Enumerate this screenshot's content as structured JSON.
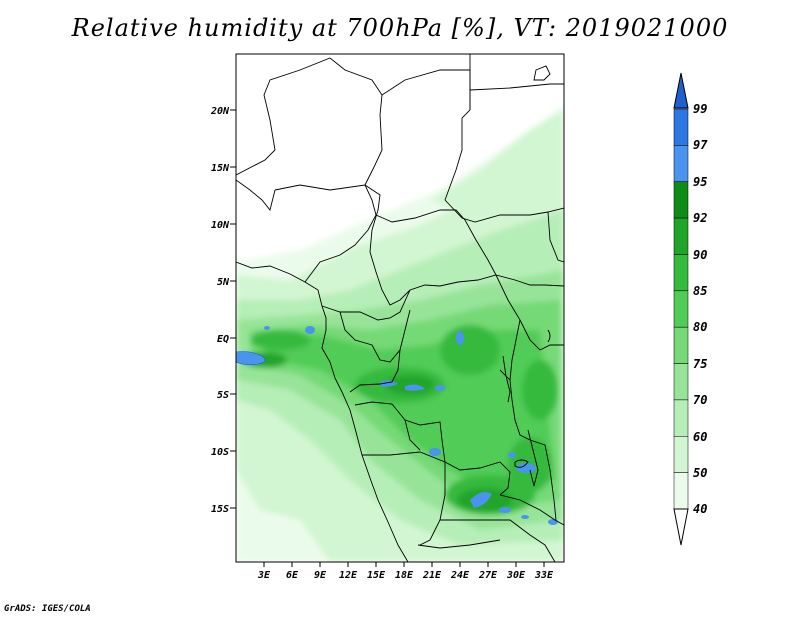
{
  "title": "Relative humidity at 700hPa [%], VT: 2019021000",
  "credit": "GrADS: IGES/COLA",
  "map": {
    "lat_ticks": [
      "20N",
      "15N",
      "10N",
      "5N",
      "EQ",
      "5S",
      "10S",
      "15S"
    ],
    "lon_ticks": [
      "3E",
      "6E",
      "9E",
      "12E",
      "15E",
      "18E",
      "21E",
      "24E",
      "27E",
      "30E",
      "33E"
    ]
  },
  "colorbar": {
    "labels": [
      "99",
      "97",
      "95",
      "92",
      "90",
      "85",
      "80",
      "75",
      "70",
      "60",
      "50",
      "40"
    ],
    "colors": [
      "#1f5fd0",
      "#2c77e2",
      "#4a94ee",
      "#0f8c18",
      "#20a52a",
      "#34ba3c",
      "#51cc56",
      "#74d976",
      "#97e498",
      "#b6eeb7",
      "#d2f6d2",
      "#ebfbeb",
      "#ffffff"
    ]
  }
}
